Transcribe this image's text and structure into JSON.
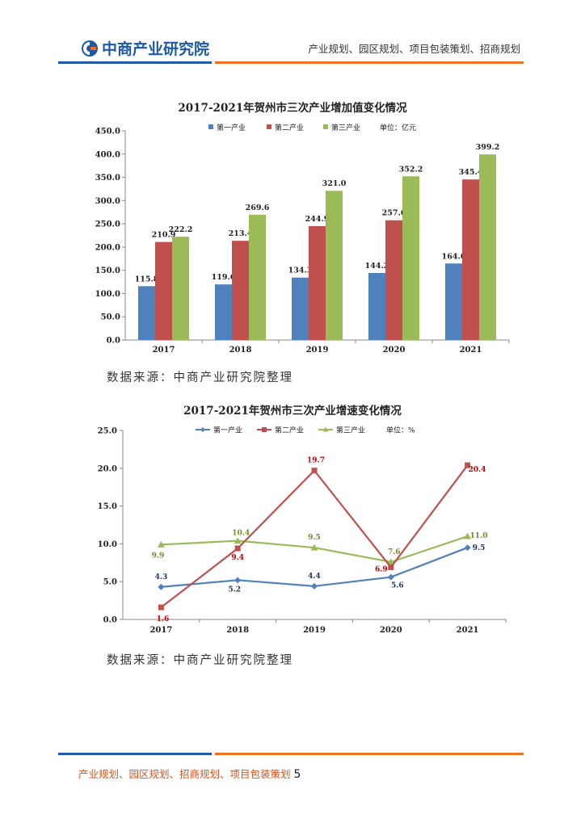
{
  "header": {
    "logo_text": "中商产业研究院",
    "tagline": "产业规划、园区规划、项目包装策划、招商规划"
  },
  "colors": {
    "blue": "#4f81bd",
    "red": "#c0504d",
    "green": "#9bbb59",
    "brand_blue": "#1e5aa8",
    "brand_orange": "#f07020"
  },
  "chart_data": [
    {
      "type": "bar",
      "title": "2017-2021年贺州市三次产业增加值变化情况",
      "unit": "单位：亿元",
      "categories": [
        "2017",
        "2018",
        "2019",
        "2020",
        "2021"
      ],
      "series": [
        {
          "name": "第一产业",
          "values": [
            115.8,
            119.6,
            134.3,
            144.2,
            164.6
          ]
        },
        {
          "name": "第二产业",
          "values": [
            210.9,
            213.4,
            244.9,
            257.6,
            345.4
          ]
        },
        {
          "name": "第三产业",
          "values": [
            222.2,
            269.6,
            321.0,
            352.2,
            399.2
          ]
        }
      ],
      "ylim": [
        0,
        450
      ],
      "yticks": [
        "0.0",
        "50.0",
        "100.0",
        "150.0",
        "200.0",
        "250.0",
        "300.0",
        "350.0",
        "400.0",
        "450.0"
      ],
      "source": "数据来源：中商产业研究院整理"
    },
    {
      "type": "line",
      "title": "2017-2021年贺州市三次产业增速变化情况",
      "unit": "单位：%",
      "categories": [
        "2017",
        "2018",
        "2019",
        "2020",
        "2021"
      ],
      "series": [
        {
          "name": "第一产业",
          "values": [
            4.3,
            5.2,
            4.4,
            5.6,
            9.5
          ]
        },
        {
          "name": "第二产业",
          "values": [
            1.6,
            9.4,
            19.7,
            6.9,
            20.4
          ]
        },
        {
          "name": "第三产业",
          "values": [
            9.9,
            10.4,
            9.5,
            7.6,
            11.0
          ]
        }
      ],
      "ylim": [
        0,
        25
      ],
      "yticks": [
        "0.0",
        "5.0",
        "10.0",
        "15.0",
        "20.0",
        "25.0"
      ],
      "source": "数据来源：中商产业研究院整理"
    }
  ],
  "footer": {
    "text": "产业规划、园区规划、招商规划、项目包装策划",
    "page": "5"
  }
}
